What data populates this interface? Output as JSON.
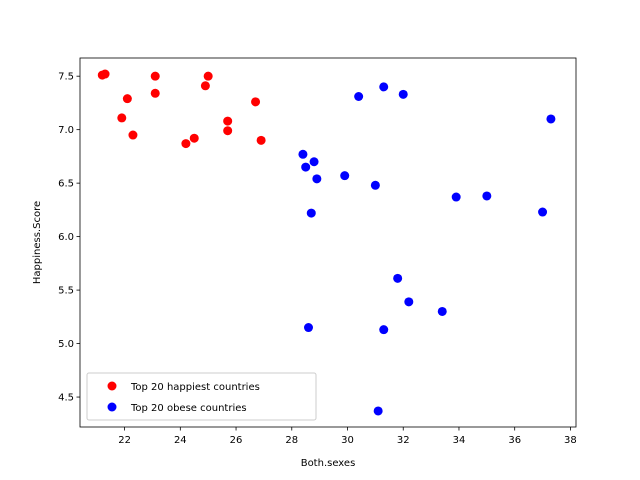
{
  "chart_data": {
    "type": "scatter",
    "title": "",
    "xlabel": "Both.sexes",
    "ylabel": "Happiness.Score",
    "xlim": [
      20.4,
      38.2
    ],
    "ylim": [
      4.22,
      7.67
    ],
    "xticks": [
      22,
      24,
      26,
      28,
      30,
      32,
      34,
      36,
      38
    ],
    "yticks": [
      4.5,
      5.0,
      5.5,
      6.0,
      6.5,
      7.0,
      7.5
    ],
    "xtick_labels": [
      "22",
      "24",
      "26",
      "28",
      "30",
      "32",
      "34",
      "36",
      "38"
    ],
    "ytick_labels": [
      "4.5",
      "5.0",
      "5.5",
      "6.0",
      "6.5",
      "7.0",
      "7.5"
    ],
    "grid": false,
    "legend_position": "lower-left",
    "series": [
      {
        "name": "Top 20 happiest countries",
        "color": "#ff0000",
        "points": [
          [
            21.2,
            7.51
          ],
          [
            21.3,
            7.52
          ],
          [
            23.1,
            7.5
          ],
          [
            25.0,
            7.5
          ],
          [
            24.9,
            7.41
          ],
          [
            23.1,
            7.34
          ],
          [
            22.1,
            7.29
          ],
          [
            26.7,
            7.26
          ],
          [
            21.9,
            7.11
          ],
          [
            25.7,
            7.08
          ],
          [
            25.7,
            6.99
          ],
          [
            22.3,
            6.95
          ],
          [
            24.5,
            6.92
          ],
          [
            26.9,
            6.9
          ],
          [
            24.2,
            6.87
          ]
        ]
      },
      {
        "name": "Top 20 obese countries",
        "color": "#0000ff",
        "points": [
          [
            31.3,
            7.4
          ],
          [
            32.0,
            7.33
          ],
          [
            30.4,
            7.31
          ],
          [
            37.3,
            7.1
          ],
          [
            28.4,
            6.77
          ],
          [
            28.8,
            6.7
          ],
          [
            28.5,
            6.65
          ],
          [
            29.9,
            6.57
          ],
          [
            28.9,
            6.54
          ],
          [
            31.0,
            6.48
          ],
          [
            35.0,
            6.38
          ],
          [
            33.9,
            6.37
          ],
          [
            37.0,
            6.23
          ],
          [
            28.7,
            6.22
          ],
          [
            31.8,
            5.61
          ],
          [
            32.2,
            5.39
          ],
          [
            33.4,
            5.3
          ],
          [
            28.6,
            5.15
          ],
          [
            31.3,
            5.13
          ],
          [
            31.1,
            4.37
          ]
        ]
      }
    ]
  }
}
